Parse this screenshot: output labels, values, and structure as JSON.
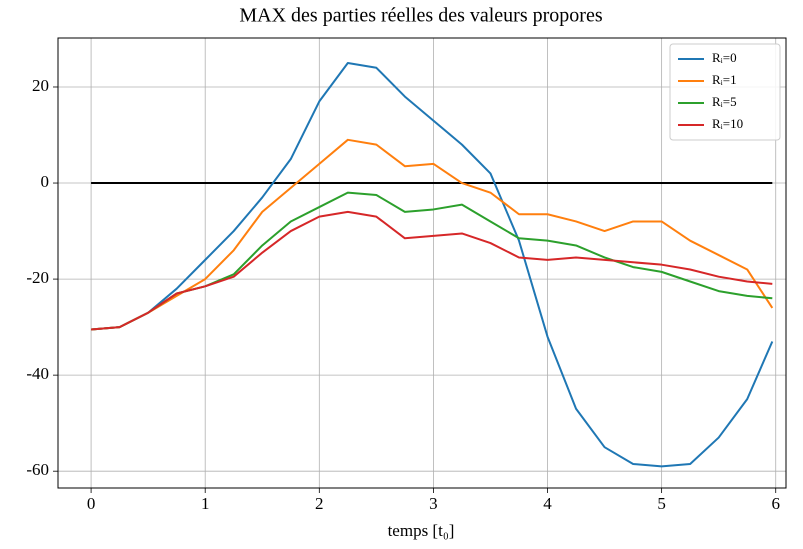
{
  "chart_data": {
    "type": "line",
    "title": "MAX des parties réelles des valeurs propores",
    "x_label": "temps [t₀]",
    "x": [
      0,
      0.25,
      0.5,
      0.75,
      1,
      1.25,
      1.5,
      1.75,
      2,
      2.25,
      2.5,
      2.75,
      3,
      3.25,
      3.5,
      3.75,
      4,
      4.25,
      4.5,
      4.75,
      5,
      5.25,
      5.5,
      5.75,
      5.97
    ],
    "series": [
      {
        "name": "Rᵢ=0",
        "color": "#1f77b4",
        "values": [
          -30.5,
          -30,
          -27,
          -22,
          -16,
          -10,
          -3,
          5,
          17,
          25,
          24,
          18,
          13,
          8,
          2,
          -12,
          -32,
          -47,
          -55,
          -58.5,
          -59,
          -58.5,
          -53,
          -45,
          -33
        ]
      },
      {
        "name": "Rᵢ=1",
        "color": "#ff7f0e",
        "values": [
          -30.5,
          -30,
          -27,
          -23.5,
          -20,
          -14,
          -6,
          -1,
          4,
          9,
          8,
          3.5,
          4,
          0,
          -2,
          -6.5,
          -6.5,
          -8,
          -10,
          -8,
          -8,
          -12,
          -15,
          -18,
          -26
        ]
      },
      {
        "name": "Rᵢ=5",
        "color": "#2ca02c",
        "values": [
          -30.5,
          -30,
          -27,
          -23,
          -21.5,
          -19,
          -13,
          -8,
          -5,
          -2,
          -2.5,
          -6,
          -5.5,
          -4.5,
          -8,
          -11.5,
          -12,
          -13,
          -15.5,
          -17.5,
          -18.5,
          -20.5,
          -22.5,
          -23.5,
          -24
        ]
      },
      {
        "name": "Rᵢ=10",
        "color": "#d62728",
        "values": [
          -30.5,
          -30,
          -27,
          -23,
          -21.5,
          -19.5,
          -14.5,
          -10,
          -7,
          -6,
          -7,
          -11.5,
          -11,
          -10.5,
          -12.5,
          -15.5,
          -16,
          -15.5,
          -16,
          -16.5,
          -17,
          -18,
          -19.5,
          -20.5,
          -21
        ]
      }
    ],
    "reference_line": 0,
    "reference_color": "#000000",
    "xlim": [
      -0.29,
      6.09
    ],
    "ylim": [
      -63.5,
      30.2
    ],
    "xticks": [
      0,
      1,
      2,
      3,
      4,
      5,
      6
    ],
    "yticks": [
      -60,
      -40,
      -20,
      0,
      20
    ],
    "grid": true,
    "legend": "upper-right"
  }
}
